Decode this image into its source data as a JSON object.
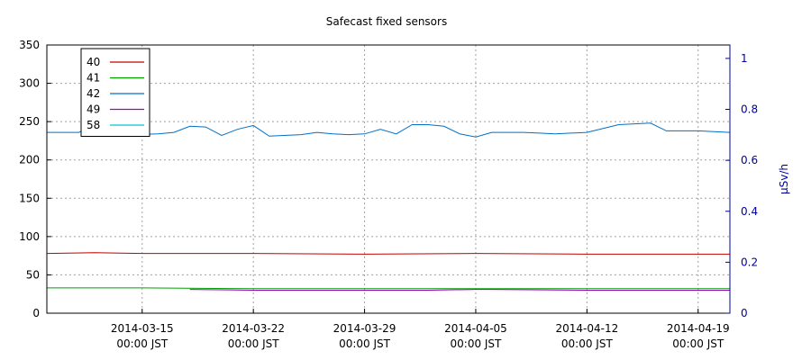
{
  "chart_data": {
    "type": "line",
    "title": "Safecast fixed sensors",
    "xlabel": "",
    "ylabel": "",
    "y2label": "µSv/h",
    "ylim": [
      0,
      350
    ],
    "y2lim": [
      0,
      1.0526
    ],
    "xlim": [
      "2014-03-09",
      "2014-04-21"
    ],
    "yticks": [
      "0",
      "50",
      "100",
      "150",
      "200",
      "250",
      "300",
      "350"
    ],
    "y2ticks": [
      "0",
      "0.2",
      "0.4",
      "0.6",
      "0.8",
      "1"
    ],
    "xticks": [
      {
        "date": "2014-03-15",
        "line1": "2014-03-15",
        "line2": "00:00 JST"
      },
      {
        "date": "2014-03-22",
        "line1": "2014-03-22",
        "line2": "00:00 JST"
      },
      {
        "date": "2014-03-29",
        "line1": "2014-03-29",
        "line2": "00:00 JST"
      },
      {
        "date": "2014-04-05",
        "line1": "2014-04-05",
        "line2": "00:00 JST"
      },
      {
        "date": "2014-04-12",
        "line1": "2014-04-12",
        "line2": "00:00 JST"
      },
      {
        "date": "2014-04-19",
        "line1": "2014-04-19",
        "line2": "00:00 JST"
      }
    ],
    "grid": true,
    "legend_position": "top-left",
    "series": [
      {
        "name": "40",
        "color": "#c00000",
        "x": [
          "2014-03-09",
          "2014-03-12",
          "2014-03-15",
          "2014-03-22",
          "2014-03-29",
          "2014-04-05",
          "2014-04-12",
          "2014-04-19",
          "2014-04-21"
        ],
        "y": [
          78,
          79,
          78,
          78,
          77,
          78,
          77,
          77,
          77
        ]
      },
      {
        "name": "41",
        "color": "#00a000",
        "x": [
          "2014-03-09",
          "2014-03-15",
          "2014-03-22",
          "2014-03-29",
          "2014-04-05",
          "2014-04-12",
          "2014-04-19",
          "2014-04-21"
        ],
        "y": [
          33,
          33,
          32,
          32,
          32,
          32,
          32,
          32
        ]
      },
      {
        "name": "42",
        "color": "#0070c8",
        "x": [
          "2014-03-09",
          "2014-03-11",
          "2014-03-12",
          "2014-03-13",
          "2014-03-16",
          "2014-03-17",
          "2014-03-18",
          "2014-03-19",
          "2014-03-20",
          "2014-03-21",
          "2014-03-22",
          "2014-03-23",
          "2014-03-25",
          "2014-03-26",
          "2014-03-27",
          "2014-03-28",
          "2014-03-29",
          "2014-03-30",
          "2014-03-31",
          "2014-04-01",
          "2014-04-02",
          "2014-04-03",
          "2014-04-04",
          "2014-04-05",
          "2014-04-06",
          "2014-04-08",
          "2014-04-09",
          "2014-04-10",
          "2014-04-11",
          "2014-04-12",
          "2014-04-14",
          "2014-04-16",
          "2014-04-17",
          "2014-04-19",
          "2014-04-21"
        ],
        "y": [
          236,
          236,
          244,
          232,
          234,
          236,
          244,
          243,
          232,
          240,
          245,
          231,
          233,
          236,
          234,
          233,
          234,
          240,
          234,
          246,
          246,
          244,
          234,
          230,
          236,
          236,
          235,
          234,
          235,
          236,
          246,
          248,
          238,
          238,
          236
        ]
      },
      {
        "name": "49",
        "color": "#a000c8",
        "x": [
          "2014-03-18",
          "2014-03-22",
          "2014-03-29",
          "2014-04-02",
          "2014-04-05",
          "2014-04-06",
          "2014-04-12",
          "2014-04-19",
          "2014-04-21"
        ],
        "y": [
          31,
          30,
          30,
          30,
          31,
          31,
          30,
          30,
          30
        ]
      },
      {
        "name": "58",
        "color": "#00c8c8",
        "x": [],
        "y": []
      }
    ]
  }
}
